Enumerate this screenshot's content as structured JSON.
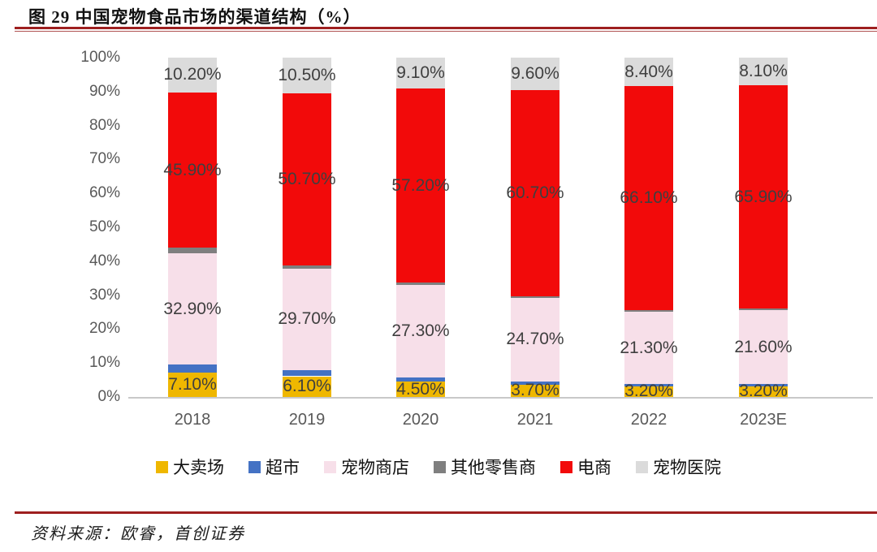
{
  "figure": {
    "title": "图 29 中国宠物食品市场的渠道结构（%）",
    "source": "资料来源：欧睿，首创证券"
  },
  "chart_data": {
    "type": "bar",
    "subtype": "stacked-column",
    "title": "图 29 中国宠物食品市场的渠道结构（%）",
    "categories": [
      "2018",
      "2019",
      "2020",
      "2021",
      "2022",
      "2023E"
    ],
    "series": [
      {
        "name": "大卖场",
        "color": "#efb700",
        "values": [
          7.1,
          6.1,
          4.5,
          3.7,
          3.2,
          3.2
        ],
        "labels": [
          "7.10%",
          "6.10%",
          "4.50%",
          "3.70%",
          "3.20%",
          "3.20%"
        ]
      },
      {
        "name": "超市",
        "color": "#4472c4",
        "values": [
          2.4,
          1.9,
          1.3,
          0.9,
          0.6,
          0.7
        ],
        "labels": null
      },
      {
        "name": "宠物商店",
        "color": "#f7dfe9",
        "values": [
          32.9,
          29.7,
          27.3,
          24.7,
          21.3,
          21.6
        ],
        "labels": [
          "32.90%",
          "29.70%",
          "27.30%",
          "24.70%",
          "21.30%",
          "21.60%"
        ]
      },
      {
        "name": "其他零售商",
        "color": "#7f7f7f",
        "values": [
          1.5,
          1.1,
          0.6,
          0.4,
          0.4,
          0.5
        ],
        "labels": null
      },
      {
        "name": "电商",
        "color": "#f20a0a",
        "values": [
          45.9,
          50.7,
          57.2,
          60.7,
          66.1,
          65.9
        ],
        "labels": [
          "45.90%",
          "50.70%",
          "57.20%",
          "60.70%",
          "66.10%",
          "65.90%"
        ]
      },
      {
        "name": "宠物医院",
        "color": "#dbdbdb",
        "values": [
          10.2,
          10.5,
          9.1,
          9.6,
          8.4,
          8.1
        ],
        "labels": [
          "10.20%",
          "10.50%",
          "9.10%",
          "9.60%",
          "8.40%",
          "8.10%"
        ]
      }
    ],
    "yticks": [
      "0%",
      "10%",
      "20%",
      "30%",
      "40%",
      "50%",
      "60%",
      "70%",
      "80%",
      "90%",
      "100%"
    ],
    "ylim": [
      0,
      100
    ],
    "grid": false,
    "legend_position": "bottom",
    "xlabel": "",
    "ylabel": ""
  }
}
